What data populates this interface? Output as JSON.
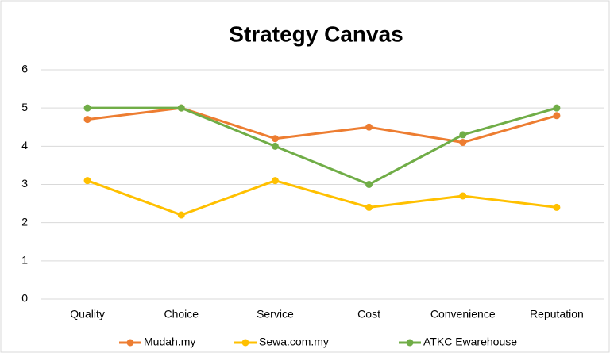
{
  "chart_data": {
    "type": "line",
    "title": "Strategy Canvas",
    "categories": [
      "Quality",
      "Choice",
      "Service",
      "Cost",
      "Convenience",
      "Reputation"
    ],
    "series": [
      {
        "name": "Mudah.my",
        "color": "#ed7d31",
        "values": [
          4.7,
          5.0,
          4.2,
          4.5,
          4.1,
          4.8
        ]
      },
      {
        "name": "Sewa.com.my",
        "color": "#ffc000",
        "values": [
          3.1,
          2.2,
          3.1,
          2.4,
          2.7,
          2.4
        ]
      },
      {
        "name": "ATKC Ewarehouse",
        "color": "#70ad47",
        "values": [
          5.0,
          5.0,
          4.0,
          3.0,
          4.3,
          5.0
        ]
      }
    ],
    "ylim": [
      0,
      6
    ],
    "yticks": [
      0,
      1,
      2,
      3,
      4,
      5,
      6
    ],
    "grid": true,
    "legend": "bottom"
  }
}
